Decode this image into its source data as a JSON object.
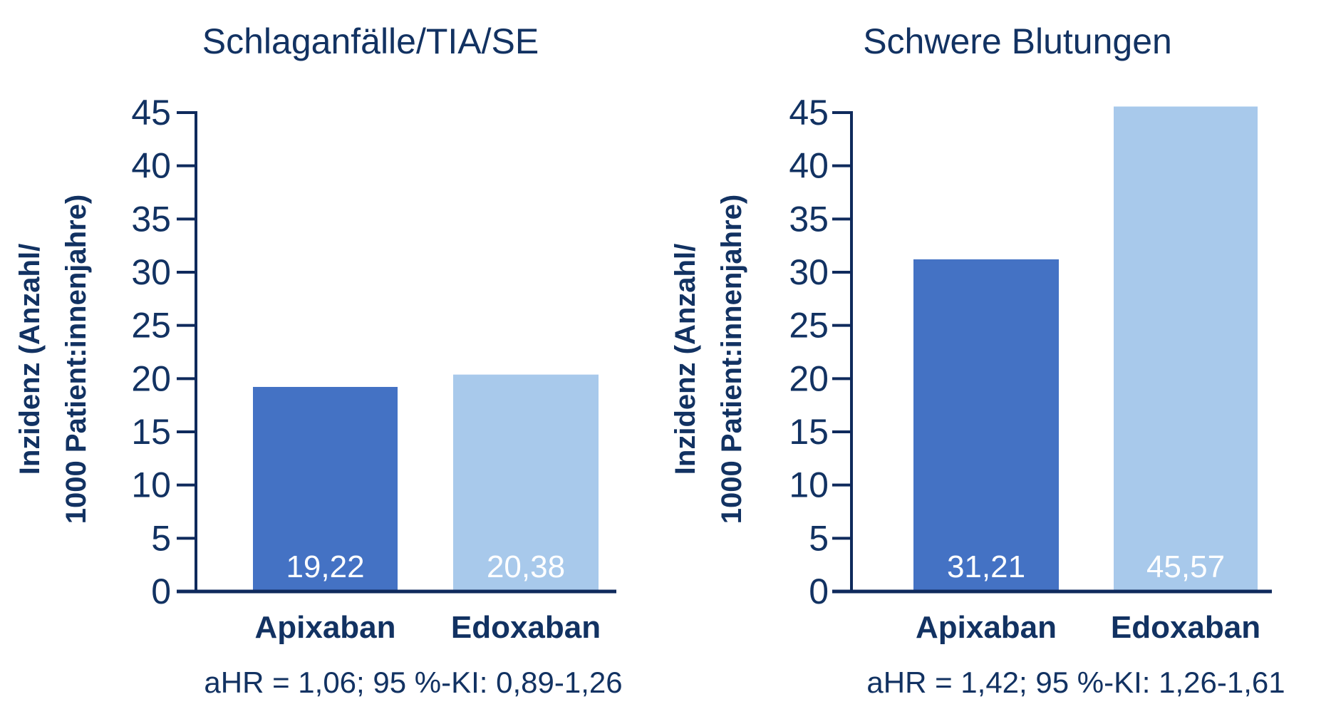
{
  "colors": {
    "axis": "#0f2a5c",
    "text_dark": "#123262",
    "apixaban": "#4472c4",
    "edoxaban": "#a8c9eb",
    "bar_label": "#ffffff"
  },
  "chart_data": [
    {
      "type": "bar",
      "title": "Schlaganfälle/TIA/SE",
      "ylabel_line1": "Inzidenz (Anzahl/",
      "ylabel_line2": "1000 Patient:innenjahre)",
      "categories": [
        "Apixaban",
        "Edoxaban"
      ],
      "values": [
        19.22,
        20.38
      ],
      "value_labels": [
        "19,22",
        "20,38"
      ],
      "ylim": [
        0,
        45
      ],
      "yticks": [
        0,
        5,
        10,
        15,
        20,
        25,
        30,
        35,
        40,
        45
      ],
      "grid": false,
      "footnote": "aHR = 1,06; 95 %-KI: 0,89-1,26"
    },
    {
      "type": "bar",
      "title": "Schwere Blutungen",
      "ylabel_line1": "Inzidenz (Anzahl/",
      "ylabel_line2": "1000 Patient:innenjahre)",
      "categories": [
        "Apixaban",
        "Edoxaban"
      ],
      "values": [
        31.21,
        45.57
      ],
      "value_labels": [
        "31,21",
        "45,57"
      ],
      "ylim": [
        0,
        45
      ],
      "yticks": [
        0,
        5,
        10,
        15,
        20,
        25,
        30,
        35,
        40,
        45
      ],
      "grid": false,
      "footnote": "aHR = 1,42; 95 %-KI: 1,26-1,61"
    }
  ]
}
